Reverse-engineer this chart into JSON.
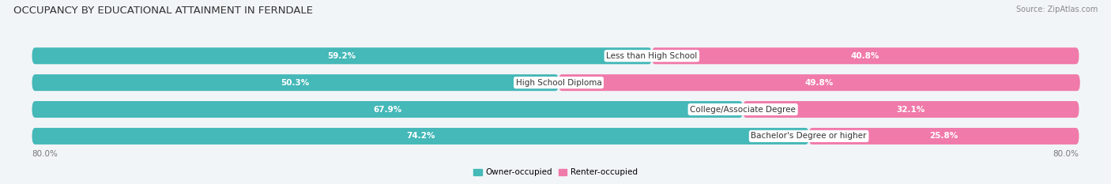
{
  "title": "OCCUPANCY BY EDUCATIONAL ATTAINMENT IN FERNDALE",
  "source": "Source: ZipAtlas.com",
  "categories": [
    "Less than High School",
    "High School Diploma",
    "College/Associate Degree",
    "Bachelor's Degree or higher"
  ],
  "owner_values": [
    59.2,
    50.3,
    67.9,
    74.2
  ],
  "renter_values": [
    40.8,
    49.8,
    32.1,
    25.8
  ],
  "owner_color": "#45b8b8",
  "renter_color": "#f07aaa",
  "renter_color_light": "#f4a8c8",
  "owner_label": "Owner-occupied",
  "renter_label": "Renter-occupied",
  "axis_left_label": "80.0%",
  "axis_right_label": "80.0%",
  "bar_height": 0.62,
  "background_color": "#f2f5f8",
  "bar_bg_color": "#e4e9f0",
  "row_bg_color": "#edf0f5",
  "title_fontsize": 9.5,
  "source_fontsize": 7,
  "value_fontsize": 7.5,
  "category_fontsize": 7.5,
  "axis_label_fontsize": 7.5,
  "total_width": 100
}
